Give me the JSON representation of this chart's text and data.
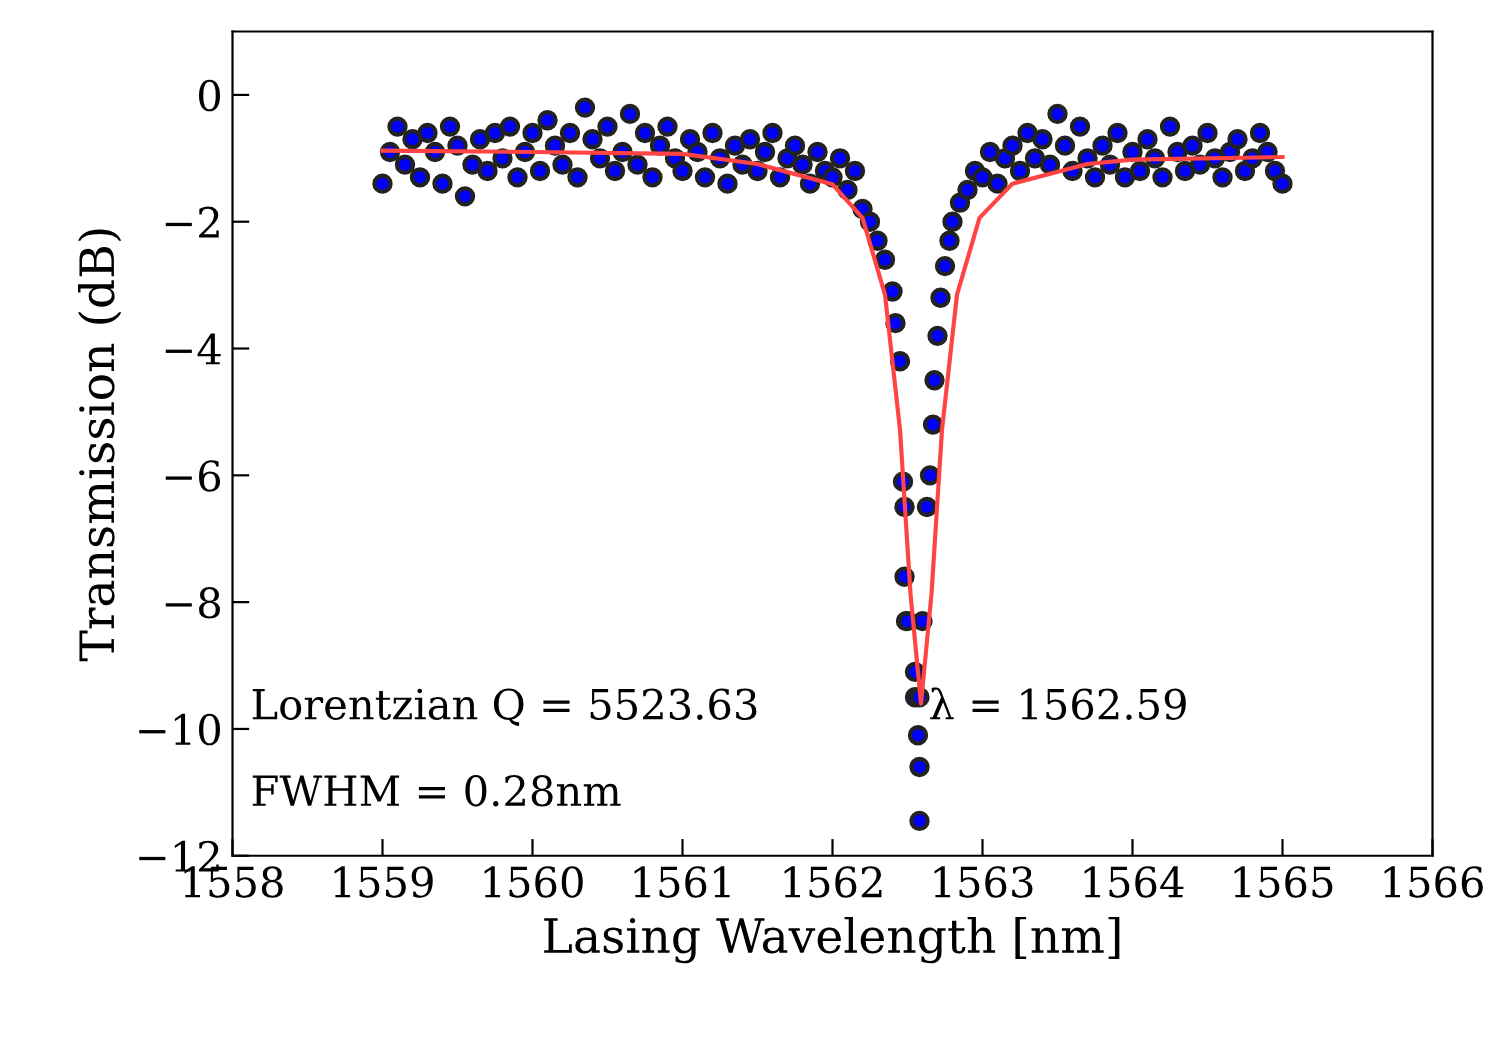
{
  "chart_data": {
    "type": "scatter",
    "xlabel": "Lasing Wavelength [nm]",
    "ylabel": "Transmission (dB)",
    "xlim": [
      1558,
      1566
    ],
    "xticks": [
      1558,
      1559,
      1560,
      1561,
      1562,
      1563,
      1564,
      1565,
      1566
    ],
    "ylim": [
      -12,
      1
    ],
    "yticks": [
      -12,
      -10,
      -8,
      -6,
      -4,
      -2,
      0
    ],
    "grid": false,
    "annotations": [
      "Lorentzian Q = 5523.63",
      "λ = 1562.59",
      "FWHM = 0.28nm"
    ],
    "series": [
      {
        "marker": "circle",
        "color": "#0000ff",
        "x": [
          1559.0,
          1559.05,
          1559.1,
          1559.15,
          1559.2,
          1559.25,
          1559.3,
          1559.35,
          1559.4,
          1559.45,
          1559.5,
          1559.55,
          1559.6,
          1559.65,
          1559.7,
          1559.75,
          1559.8,
          1559.85,
          1559.9,
          1559.95,
          1560.0,
          1560.05,
          1560.1,
          1560.15,
          1560.2,
          1560.25,
          1560.3,
          1560.35,
          1560.4,
          1560.45,
          1560.5,
          1560.55,
          1560.6,
          1560.65,
          1560.7,
          1560.75,
          1560.8,
          1560.85,
          1560.9,
          1560.95,
          1561.0,
          1561.05,
          1561.1,
          1561.15,
          1561.2,
          1561.25,
          1561.3,
          1561.35,
          1561.4,
          1561.45,
          1561.5,
          1561.55,
          1561.6,
          1561.65,
          1561.7,
          1561.75,
          1561.8,
          1561.85,
          1561.9,
          1561.95,
          1562.0,
          1562.05,
          1562.1,
          1562.15,
          1562.2,
          1562.25,
          1562.3,
          1562.35,
          1562.4,
          1562.42,
          1562.45,
          1562.47,
          1562.48,
          1562.48,
          1562.49,
          1562.5,
          1562.55,
          1562.55,
          1562.57,
          1562.58,
          1562.58,
          1562.58,
          1562.6,
          1562.63,
          1562.65,
          1562.67,
          1562.68,
          1562.7,
          1562.72,
          1562.75,
          1562.78,
          1562.8,
          1562.85,
          1562.9,
          1562.95,
          1563.0,
          1563.05,
          1563.1,
          1563.15,
          1563.2,
          1563.25,
          1563.3,
          1563.35,
          1563.4,
          1563.45,
          1563.5,
          1563.55,
          1563.6,
          1563.65,
          1563.7,
          1563.75,
          1563.8,
          1563.85,
          1563.9,
          1563.95,
          1564.0,
          1564.05,
          1564.1,
          1564.15,
          1564.2,
          1564.25,
          1564.3,
          1564.35,
          1564.4,
          1564.45,
          1564.5,
          1564.55,
          1564.6,
          1564.65,
          1564.7,
          1564.75,
          1564.8,
          1564.85,
          1564.9,
          1564.95,
          1565.0
        ],
        "values": [
          -1.4,
          -0.9,
          -0.5,
          -1.1,
          -0.7,
          -1.3,
          -0.6,
          -0.9,
          -1.4,
          -0.5,
          -0.8,
          -1.6,
          -1.1,
          -0.7,
          -1.2,
          -0.6,
          -1.0,
          -0.5,
          -1.3,
          -0.9,
          -0.6,
          -1.2,
          -0.4,
          -0.8,
          -1.1,
          -0.6,
          -1.3,
          -0.2,
          -0.7,
          -1.0,
          -0.5,
          -1.2,
          -0.9,
          -0.3,
          -1.1,
          -0.6,
          -1.3,
          -0.8,
          -0.5,
          -1.0,
          -1.2,
          -0.7,
          -0.9,
          -1.3,
          -0.6,
          -1.0,
          -1.4,
          -0.8,
          -1.1,
          -0.7,
          -1.2,
          -0.9,
          -0.6,
          -1.3,
          -1.0,
          -0.8,
          -1.1,
          -1.4,
          -0.9,
          -1.2,
          -1.3,
          -1.0,
          -1.5,
          -1.2,
          -1.8,
          -2.0,
          -2.3,
          -2.6,
          -3.1,
          -3.6,
          -4.2,
          -6.1,
          -6.5,
          -7.6,
          -8.3,
          -8.3,
          -9.1,
          -9.5,
          -10.1,
          -10.6,
          -11.45,
          -9.5,
          -8.3,
          -6.5,
          -6.0,
          -5.2,
          -4.5,
          -3.8,
          -3.2,
          -2.7,
          -2.3,
          -2.0,
          -1.7,
          -1.5,
          -1.2,
          -1.3,
          -0.9,
          -1.4,
          -1.0,
          -0.8,
          -1.2,
          -0.6,
          -1.0,
          -0.7,
          -1.1,
          -0.3,
          -0.8,
          -1.2,
          -0.5,
          -1.0,
          -1.3,
          -0.8,
          -1.1,
          -0.6,
          -1.3,
          -0.9,
          -1.2,
          -0.7,
          -1.0,
          -1.3,
          -0.5,
          -0.9,
          -1.2,
          -0.8,
          -1.1,
          -0.6,
          -1.0,
          -1.3,
          -0.9,
          -0.7,
          -1.2,
          -1.0,
          -0.6,
          -0.9,
          -1.2,
          -1.4
        ]
      },
      {
        "type": "line",
        "marker": "none",
        "color": "#ff4444",
        "x": [
          1559.0,
          1560.0,
          1561.0,
          1561.5,
          1562.0,
          1562.2,
          1562.35,
          1562.45,
          1562.52,
          1562.59,
          1562.66,
          1562.73,
          1562.83,
          1562.98,
          1563.2,
          1563.7,
          1564.0,
          1565.0
        ],
        "values": [
          -0.88,
          -0.9,
          -0.93,
          -1.09,
          -1.41,
          -1.94,
          -3.15,
          -5.28,
          -7.87,
          -9.6,
          -7.87,
          -5.28,
          -3.15,
          -1.94,
          -1.4,
          -1.09,
          -1.02,
          -0.98
        ]
      }
    ]
  }
}
